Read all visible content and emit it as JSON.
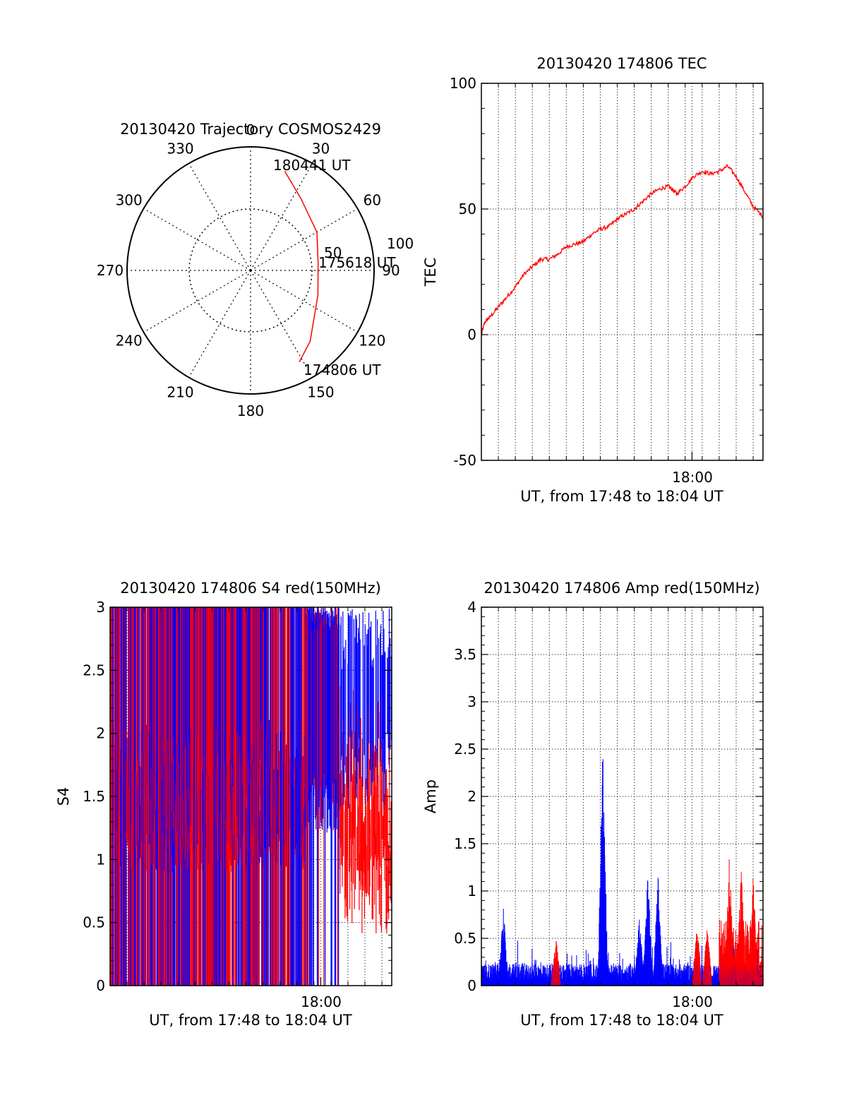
{
  "colors": {
    "red": "#ff0000",
    "blue": "#0000ff",
    "axis": "#000000",
    "grid": "#000000"
  },
  "chart_data": [
    {
      "id": "trajectory",
      "type": "polar",
      "title": "20130420 Trajectory COSMOS2429",
      "azimuth_labels": [
        "0",
        "30",
        "60",
        "90",
        "120",
        "150",
        "180",
        "210",
        "240",
        "270",
        "300",
        "330"
      ],
      "radial_tick_labels": [
        "50",
        "100"
      ],
      "radius_max": 100,
      "track": {
        "color": "#ff0000",
        "points": [
          {
            "azimuth": 19,
            "radius": 85
          },
          {
            "azimuth": 35,
            "radius": 71
          },
          {
            "azimuth": 60,
            "radius": 62
          },
          {
            "azimuth": 84,
            "radius": 55
          },
          {
            "azimuth": 110,
            "radius": 58
          },
          {
            "azimuth": 140,
            "radius": 75
          },
          {
            "azimuth": 152,
            "radius": 84
          }
        ]
      },
      "annotations": [
        "180441 UT",
        "175618 UT",
        "174806 UT"
      ]
    },
    {
      "id": "tec",
      "type": "line",
      "title": "20130420 174806 TEC",
      "ylabel": "TEC",
      "xlabel": "UT, from 17:48 to 18:04 UT",
      "x_range_minutes": [
        0,
        16.58
      ],
      "x_tick_label": "18:00",
      "x_tick_minute": 12.4,
      "ylim": [
        -50,
        100
      ],
      "y_ticks": [
        "-50",
        "0",
        "50",
        "100"
      ],
      "y_tick_values": [
        -50,
        0,
        50,
        100
      ],
      "series": [
        {
          "color": "#ff0000",
          "x": [
            0,
            0.2,
            0.5,
            1,
            1.5,
            2,
            2.5,
            3,
            3.5,
            4,
            4.5,
            5,
            5.5,
            6,
            6.5,
            7,
            7.5,
            8,
            8.5,
            9,
            9.5,
            10,
            10.5,
            11,
            11.2,
            11.5,
            12,
            12.5,
            13,
            13.5,
            14,
            14.5,
            15,
            15.5,
            16,
            16.58
          ],
          "y": [
            0,
            5,
            7,
            11,
            15,
            19,
            24,
            27,
            30,
            30,
            32,
            35,
            36,
            37,
            40,
            42,
            43,
            46,
            48,
            50,
            53,
            56,
            58,
            59,
            58,
            56,
            59,
            63,
            65,
            64,
            65,
            67,
            63,
            57,
            51,
            47
          ]
        }
      ]
    },
    {
      "id": "s4",
      "type": "line",
      "title": "20130420 174806 S4 red(150MHz)",
      "ylabel": "S4",
      "xlabel": "UT, from 17:48 to 18:04 UT",
      "x_range_minutes": [
        0,
        16.58
      ],
      "x_tick_label": "18:00",
      "x_tick_minute": 12.4,
      "ylim": [
        0,
        3
      ],
      "y_ticks": [
        "0",
        "0.5",
        "1",
        "1.5",
        "2",
        "2.5",
        "3"
      ],
      "y_tick_values": [
        0,
        0.5,
        1,
        1.5,
        2,
        2.5,
        3
      ],
      "series": [
        {
          "color": "#ff0000",
          "note": "saturated dense spikes 0 to 3 until ~11.5 min, then values 0.4-2 toward the end"
        },
        {
          "color": "#0000ff",
          "note": "dense spikes 0 to 3, baseline around 1.1 at start"
        }
      ]
    },
    {
      "id": "amp",
      "type": "line",
      "title": "20130420 174806 Amp red(150MHz)",
      "ylabel": "Amp",
      "xlabel": "UT, from 17:48 to 18:04 UT",
      "x_range_minutes": [
        0,
        16.58
      ],
      "x_tick_label": "18:00",
      "x_tick_minute": 12.4,
      "ylim": [
        0,
        4
      ],
      "y_ticks": [
        "0",
        "0.5",
        "1",
        "1.5",
        "2",
        "2.5",
        "3",
        "3.5",
        "4"
      ],
      "y_tick_values": [
        0,
        0.5,
        1,
        1.5,
        2,
        2.5,
        3,
        3.5,
        4
      ],
      "series": [
        {
          "color": "#0000ff",
          "bursts": [
            {
              "x": 1.3,
              "peak": 0.85
            },
            {
              "x": 7.15,
              "peak": 2.68
            },
            {
              "x": 9.3,
              "peak": 0.75
            },
            {
              "x": 9.8,
              "peak": 1.25
            },
            {
              "x": 10.4,
              "peak": 1.2
            }
          ]
        },
        {
          "color": "#ff0000",
          "bursts": [
            {
              "x": 4.4,
              "peak": 0.55
            },
            {
              "x": 12.7,
              "peak": 0.7
            },
            {
              "x": 13.3,
              "peak": 0.65
            },
            {
              "x": 14.6,
              "peak": 1.4
            },
            {
              "x": 15.3,
              "peak": 1.3
            },
            {
              "x": 16.0,
              "peak": 1.2
            }
          ]
        }
      ]
    }
  ]
}
